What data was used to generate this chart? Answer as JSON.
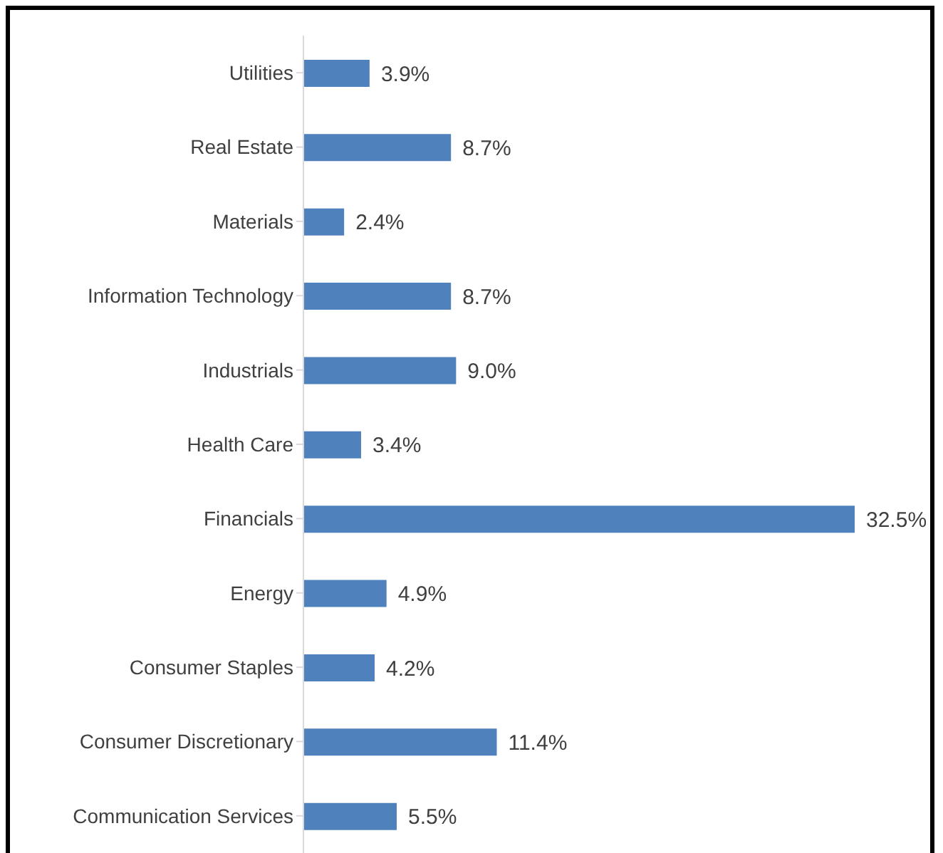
{
  "chart_data": {
    "type": "bar",
    "orientation": "horizontal",
    "categories": [
      "Utilities",
      "Real Estate",
      "Materials",
      "Information Technology",
      "Industrials",
      "Health Care",
      "Financials",
      "Energy",
      "Consumer Staples",
      "Consumer Discretionary",
      "Communication Services"
    ],
    "values": [
      3.9,
      8.7,
      2.4,
      8.7,
      9.0,
      3.4,
      32.5,
      4.9,
      4.2,
      11.4,
      5.5
    ],
    "value_labels": [
      "3.9%",
      "8.7%",
      "2.4%",
      "8.7%",
      "9.0%",
      "3.4%",
      "32.5%",
      "4.9%",
      "4.2%",
      "11.4%",
      "5.5%"
    ],
    "color": "#4f81bd"
  }
}
